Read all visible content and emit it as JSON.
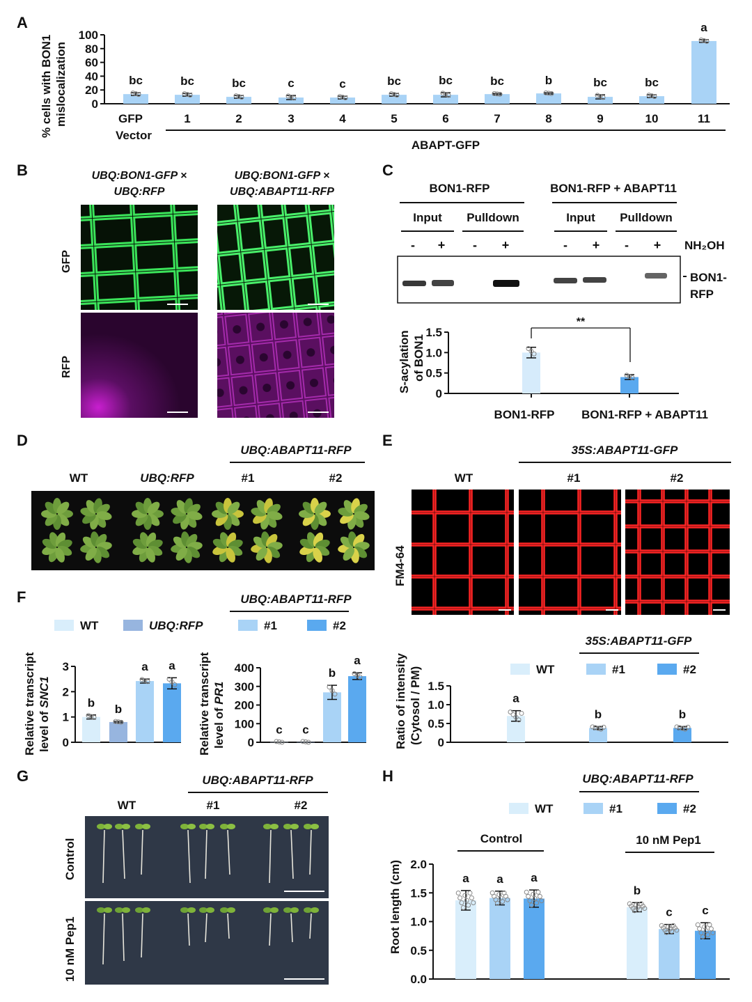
{
  "panels": [
    "A",
    "B",
    "C",
    "D",
    "E",
    "F",
    "G",
    "H"
  ],
  "colors": {
    "wt": "#d9eefb",
    "ubq_rfp": "#97b5df",
    "line1": "#a9d3f6",
    "line2": "#5aa9ef",
    "gfp_channel": "#2fd24a",
    "rfp_channel": "#b21fbc",
    "fm464": "#ff2020",
    "plate": "#2e3746"
  },
  "panel_a": {
    "ylabel": "% cells with BON1\nmislocalization",
    "row1_label": "GFP",
    "row2_label": "Vector",
    "group_label": "ABAPT-GFP"
  },
  "panel_b": {
    "col1_line1": "UBQ:BON1-GFP ×",
    "col1_line2": "UBQ:RFP",
    "col2_line1": "UBQ:BON1-GFP ×",
    "col2_line2": "UBQ:ABAPT11-RFP",
    "row1": "GFP",
    "row2": "RFP"
  },
  "panel_c": {
    "group1": "BON1-RFP",
    "group2": "BON1-RFP + ABAPT11",
    "input": "Input",
    "pulldown": "Pulldown",
    "signs": [
      "-",
      "+",
      "-",
      "+",
      "-",
      "+",
      "-",
      "+"
    ],
    "treatment": "NH₂OH",
    "band_label_1": "BON1-",
    "band_label_2": "RFP",
    "sig": "**"
  },
  "panel_d": {
    "group_label": "UBQ:ABAPT11-RFP",
    "labels": [
      "WT",
      "UBQ:RFP",
      "#1",
      "#2"
    ]
  },
  "panel_e": {
    "group_label": "UBQ:ABAPT11-RFP",
    "legend": [
      "WT",
      "UBQ:RFP",
      "#1",
      "#2"
    ],
    "ylabel1_a": "Relative transcript",
    "ylabel1_b": "level of ",
    "gene1": "SNC1",
    "ylabel2_a": "Relative transcript",
    "ylabel2_b": "level of ",
    "gene2": "PR1"
  },
  "panel_f": {
    "group_label": "35S:ABAPT11-GFP",
    "labels": [
      "WT",
      "#1",
      "#2"
    ],
    "stain": "FM4-64",
    "legend": [
      "WT",
      "#1",
      "#2"
    ],
    "ylabel_a": "Ratio of intensity",
    "ylabel_b": "(Cytosol / PM)"
  },
  "panel_g": {
    "group_label": "UBQ:ABAPT11-RFP",
    "labels": [
      "WT",
      "#1",
      "#2"
    ],
    "row1": "Control",
    "row2": "10 nM Pep1"
  },
  "panel_h": {
    "group_label": "UBQ:ABAPT11-RFP",
    "legend": [
      "WT",
      "#1",
      "#2"
    ],
    "cond1": "Control",
    "cond2": "10 nM Pep1",
    "ylabel": "Root length (cm)"
  },
  "chart_data": [
    {
      "id": "A",
      "type": "bar",
      "categories": [
        "GFP",
        "1",
        "2",
        "3",
        "4",
        "5",
        "6",
        "7",
        "8",
        "9",
        "10",
        "11"
      ],
      "values": [
        14,
        13,
        10,
        9,
        9,
        13,
        13,
        14,
        15,
        10,
        11,
        91
      ],
      "errors": [
        2,
        2,
        2,
        3,
        2,
        2,
        3,
        1,
        1,
        3,
        2,
        2
      ],
      "letters": [
        "bc",
        "bc",
        "bc",
        "c",
        "c",
        "bc",
        "bc",
        "bc",
        "b",
        "bc",
        "bc",
        "a"
      ],
      "ylim": [
        0,
        100
      ],
      "yticks": [
        0,
        20,
        40,
        60,
        80,
        100
      ]
    },
    {
      "id": "C",
      "type": "bar",
      "categories": [
        "BON1-RFP",
        "BON1-RFP + ABAPT11"
      ],
      "values": [
        1.0,
        0.4
      ],
      "errors": [
        0.13,
        0.06
      ],
      "ylabel": "S-acylation\nof BON1",
      "ylim": [
        0,
        1.5
      ],
      "yticks": [
        0,
        0.5,
        1.0,
        1.5
      ]
    },
    {
      "id": "E1",
      "type": "bar",
      "categories": [
        "WT",
        "UBQ:RFP",
        "#1",
        "#2"
      ],
      "values": [
        1.0,
        0.8,
        2.42,
        2.33
      ],
      "errors": [
        0.08,
        0.03,
        0.08,
        0.22
      ],
      "letters": [
        "b",
        "b",
        "a",
        "a"
      ],
      "ylim": [
        0,
        3
      ],
      "yticks": [
        0,
        1,
        2,
        3
      ]
    },
    {
      "id": "E2",
      "type": "bar",
      "categories": [
        "WT",
        "UBQ:RFP",
        "#1",
        "#2"
      ],
      "values": [
        1,
        1,
        268,
        355
      ],
      "errors": [
        0,
        0,
        38,
        18
      ],
      "letters": [
        "c",
        "c",
        "b",
        "a"
      ],
      "ylim": [
        0,
        400
      ],
      "yticks": [
        0,
        100,
        200,
        300,
        400
      ]
    },
    {
      "id": "F",
      "type": "bar",
      "categories": [
        "WT",
        "#1",
        "#2"
      ],
      "values": [
        0.7,
        0.38,
        0.38
      ],
      "errors": [
        0.14,
        0.04,
        0.04
      ],
      "letters": [
        "a",
        "b",
        "b"
      ],
      "ylim": [
        0,
        1.5
      ],
      "yticks": [
        0,
        0.5,
        1.0,
        1.5
      ]
    },
    {
      "id": "H",
      "type": "bar",
      "groups": [
        "Control",
        "10 nM Pep1"
      ],
      "series": [
        {
          "name": "WT",
          "values": [
            1.37,
            1.25
          ],
          "errors": [
            0.17,
            0.08
          ]
        },
        {
          "name": "#1",
          "values": [
            1.41,
            0.87
          ],
          "errors": [
            0.12,
            0.08
          ]
        },
        {
          "name": "#2",
          "values": [
            1.4,
            0.84
          ],
          "errors": [
            0.15,
            0.14
          ]
        }
      ],
      "letters": [
        [
          "a",
          "b"
        ],
        [
          "a",
          "c"
        ],
        [
          "a",
          "c"
        ]
      ],
      "ylim": [
        0,
        2.0
      ],
      "yticks": [
        0,
        0.5,
        1.0,
        1.5,
        2.0
      ]
    }
  ]
}
